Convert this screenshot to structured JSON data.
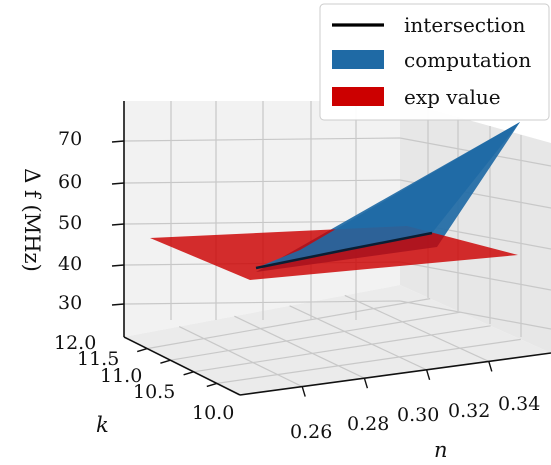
{
  "chart_data": {
    "type": "surface3d",
    "legend": {
      "placement": "top-right",
      "entries": [
        {
          "label": "intersection",
          "color": "#000000",
          "kind": "line"
        },
        {
          "label": "computation",
          "color": "#1f6aa5",
          "kind": "patch"
        },
        {
          "label": "exp value",
          "color": "#cc0000",
          "kind": "patch"
        }
      ]
    },
    "zlabel": "Δ f (MHz)",
    "xlabel": "n",
    "ylabel": "k",
    "zticks": [
      "30",
      "40",
      "50",
      "60",
      "70"
    ],
    "xticks": [
      "0.26",
      "0.28",
      "0.30",
      "0.32",
      "0.34"
    ],
    "yticks": [
      "12.0",
      "11.5",
      "11.0",
      "10.5",
      "10.0"
    ],
    "zlim": [
      23,
      77
    ],
    "xlim": [
      0.25,
      0.35
    ],
    "ylim": [
      10.0,
      12.0
    ],
    "grid": true,
    "series": [
      {
        "name": "computation",
        "surface": {
          "corners": [
            {
              "n": 0.25,
              "k": 12.0,
              "f": 22
            },
            {
              "n": 0.35,
              "k": 12.0,
              "f": 75
            },
            {
              "n": 0.25,
              "k": 10.0,
              "f": 30
            },
            {
              "n": 0.35,
              "k": 10.0,
              "f": 47
            }
          ]
        }
      },
      {
        "name": "exp value",
        "plane_value": 42
      },
      {
        "name": "intersection",
        "line": [
          {
            "n": 0.27,
            "k": 10.0,
            "f": 42
          },
          {
            "n": 0.3,
            "k": 11.0,
            "f": 42
          },
          {
            "n": 0.33,
            "k": 12.0,
            "f": 42
          }
        ]
      }
    ]
  }
}
